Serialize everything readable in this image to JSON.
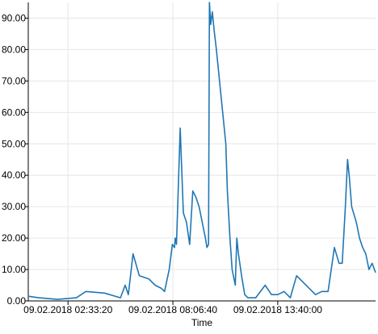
{
  "chart_data": {
    "type": "line",
    "title": "",
    "xlabel": "Time",
    "ylabel": "",
    "ylim": [
      0,
      95
    ],
    "y_ticks": [
      "0.00",
      "10.00",
      "20.00",
      "30.00",
      "40.00",
      "50.00",
      "60.00",
      "70.00",
      "80.00",
      "90.00"
    ],
    "y_tick_values": [
      0,
      10,
      20,
      30,
      40,
      50,
      60,
      70,
      80,
      90
    ],
    "x_ticks": [
      "09.02.2018 02:33:20",
      "09.02.2018 08:06:40",
      "09.02.2018 13:40:00"
    ],
    "x_tick_times": [
      "2018-02-09 02:33:20",
      "2018-02-09 08:06:40",
      "2018-02-09 13:40:00"
    ],
    "xlim": [
      "2018-02-09 00:27",
      "2018-02-09 18:51"
    ],
    "grid": true,
    "line_color": "#1f77b4",
    "series": [
      {
        "name": "",
        "x": [
          "2018-02-09 00:27",
          "2018-02-09 01:00",
          "2018-02-09 02:00",
          "2018-02-09 03:00",
          "2018-02-09 03:30",
          "2018-02-09 04:30",
          "2018-02-09 05:20",
          "2018-02-09 05:35",
          "2018-02-09 05:45",
          "2018-02-09 06:00",
          "2018-02-09 06:20",
          "2018-02-09 06:50",
          "2018-02-09 07:10",
          "2018-02-09 07:30",
          "2018-02-09 07:40",
          "2018-02-09 07:55",
          "2018-02-09 08:05",
          "2018-02-09 08:12",
          "2018-02-09 08:14",
          "2018-02-09 08:18",
          "2018-02-09 08:30",
          "2018-02-09 08:40",
          "2018-02-09 08:50",
          "2018-02-09 09:00",
          "2018-02-09 09:10",
          "2018-02-09 09:20",
          "2018-02-09 09:30",
          "2018-02-09 09:40",
          "2018-02-09 09:50",
          "2018-02-09 09:55",
          "2018-02-09 10:00",
          "2018-02-09 10:03",
          "2018-02-09 10:07",
          "2018-02-09 10:12",
          "2018-02-09 10:18",
          "2018-02-09 10:25",
          "2018-02-09 10:35",
          "2018-02-09 10:45",
          "2018-02-09 10:55",
          "2018-02-09 11:00",
          "2018-02-09 11:08",
          "2018-02-09 11:15",
          "2018-02-09 11:25",
          "2018-02-09 11:30",
          "2018-02-09 11:35",
          "2018-02-09 11:45",
          "2018-02-09 11:55",
          "2018-02-09 12:05",
          "2018-02-09 12:30",
          "2018-02-09 13:00",
          "2018-02-09 13:20",
          "2018-02-09 13:40",
          "2018-02-09 14:00",
          "2018-02-09 14:20",
          "2018-02-09 14:40",
          "2018-02-09 15:00",
          "2018-02-09 15:20",
          "2018-02-09 15:40",
          "2018-02-09 16:00",
          "2018-02-09 16:20",
          "2018-02-09 16:40",
          "2018-02-09 16:55",
          "2018-02-09 17:05",
          "2018-02-09 17:15",
          "2018-02-09 17:22",
          "2018-02-09 17:27",
          "2018-02-09 17:35",
          "2018-02-09 17:50",
          "2018-02-09 18:00",
          "2018-02-09 18:10",
          "2018-02-09 18:20",
          "2018-02-09 18:30",
          "2018-02-09 18:40",
          "2018-02-09 18:51"
        ],
        "values": [
          1.5,
          1,
          0.5,
          1,
          3,
          2.5,
          1,
          5,
          2,
          15,
          8,
          7,
          5,
          4,
          3,
          10,
          18,
          17,
          20,
          18,
          55,
          28,
          25,
          18,
          35,
          33,
          30,
          25,
          20,
          17,
          18,
          95,
          88,
          92,
          86,
          80,
          70,
          60,
          50,
          35,
          20,
          10,
          5,
          20,
          15,
          8,
          2,
          1,
          1,
          5,
          2,
          2,
          3,
          1,
          8,
          6,
          4,
          2,
          3,
          3,
          17,
          12,
          12,
          30,
          45,
          40,
          30,
          25,
          20,
          17,
          15,
          10,
          12,
          9
        ]
      }
    ]
  }
}
